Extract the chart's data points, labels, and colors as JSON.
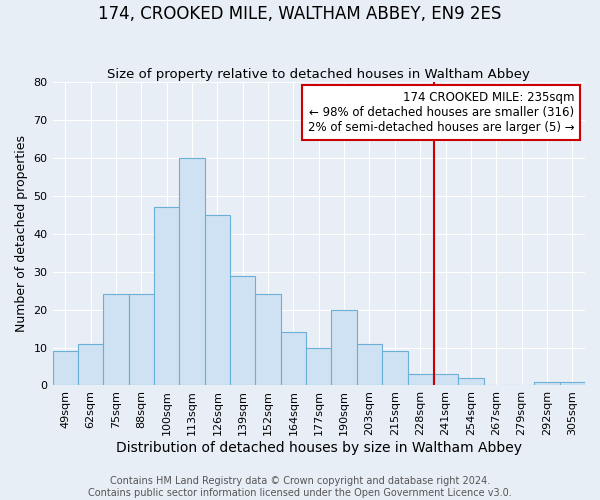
{
  "title": "174, CROOKED MILE, WALTHAM ABBEY, EN9 2ES",
  "subtitle": "Size of property relative to detached houses in Waltham Abbey",
  "xlabel": "Distribution of detached houses by size in Waltham Abbey",
  "ylabel": "Number of detached properties",
  "bar_labels": [
    "49sqm",
    "62sqm",
    "75sqm",
    "88sqm",
    "100sqm",
    "113sqm",
    "126sqm",
    "139sqm",
    "152sqm",
    "164sqm",
    "177sqm",
    "190sqm",
    "203sqm",
    "215sqm",
    "228sqm",
    "241sqm",
    "254sqm",
    "267sqm",
    "279sqm",
    "292sqm",
    "305sqm"
  ],
  "bar_values": [
    9,
    11,
    24,
    24,
    47,
    60,
    45,
    29,
    24,
    14,
    10,
    20,
    11,
    9,
    3,
    3,
    2,
    0,
    0,
    1,
    1
  ],
  "bar_color": "#cfe2f3",
  "bar_edge_color": "#6aafd6",
  "background_color": "#e8eef5",
  "grid_color": "#ffffff",
  "vline_color": "#cc0000",
  "annotation_text": "174 CROOKED MILE: 235sqm\n← 98% of detached houses are smaller (316)\n2% of semi-detached houses are larger (5) →",
  "annotation_box_facecolor": "#ffffff",
  "annotation_box_edgecolor": "#cc0000",
  "footer_line1": "Contains HM Land Registry data © Crown copyright and database right 2024.",
  "footer_line2": "Contains public sector information licensed under the Open Government Licence v3.0.",
  "ylim": [
    0,
    80
  ],
  "yticks": [
    0,
    10,
    20,
    30,
    40,
    50,
    60,
    70,
    80
  ],
  "title_fontsize": 12,
  "subtitle_fontsize": 9.5,
  "xlabel_fontsize": 10,
  "ylabel_fontsize": 9,
  "tick_fontsize": 8,
  "annotation_fontsize": 8.5,
  "footer_fontsize": 7
}
